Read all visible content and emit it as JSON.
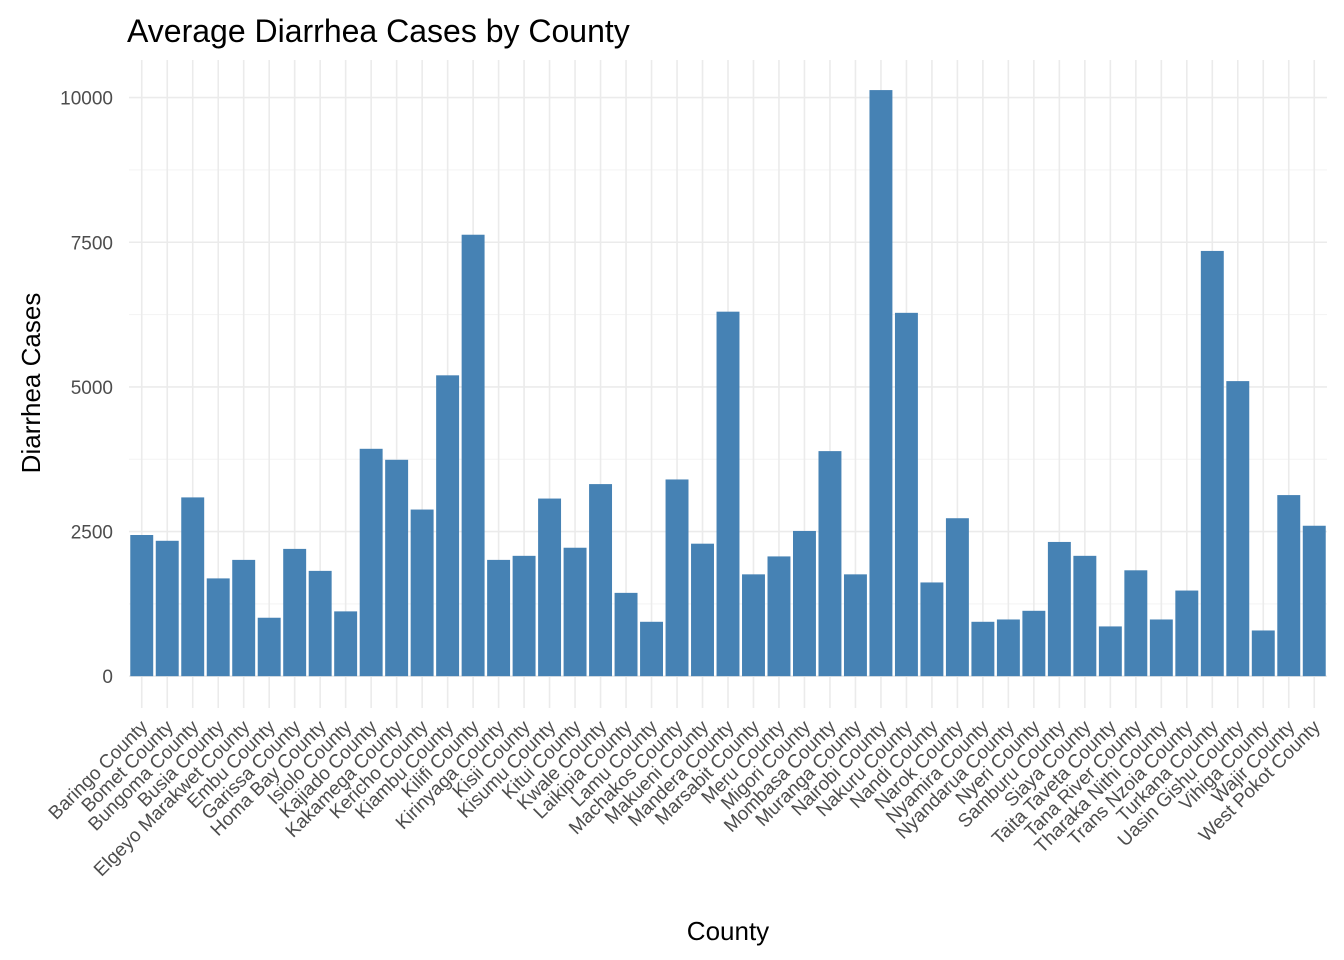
{
  "chart_data": {
    "type": "bar",
    "title": "Average Diarrhea Cases by County",
    "xlabel": "County",
    "ylabel": "Diarrhea Cases",
    "ylim": [
      -550,
      10650
    ],
    "yticks": [
      0,
      2500,
      5000,
      7500,
      10000
    ],
    "grid": true,
    "bar_color": "#4682b4",
    "categories": [
      "Baringo County",
      "Bomet County",
      "Bungoma County",
      "Busia County",
      "Elgeyo Marakwet County",
      "Embu County",
      "Garissa County",
      "Homa Bay County",
      "Isiolo County",
      "Kajiado County",
      "Kakamega County",
      "Kericho County",
      "Kiambu County",
      "Kilifi County",
      "Kirinyaga County",
      "Kisii County",
      "Kisumu County",
      "Kitui County",
      "Kwale County",
      "Laikipia County",
      "Lamu County",
      "Machakos County",
      "Makueni County",
      "Mandera County",
      "Marsabit County",
      "Meru County",
      "Migori County",
      "Mombasa County",
      "Muranga County",
      "Nairobi County",
      "Nakuru County",
      "Nandi County",
      "Narok County",
      "Nyamira County",
      "Nyandarua County",
      "Nyeri County",
      "Samburu County",
      "Siaya County",
      "Taita Taveta County",
      "Tana River County",
      "Tharaka Nithi County",
      "Trans Nzoia County",
      "Turkana County",
      "Uasin Gishu County",
      "Vihiga County",
      "Wajir County",
      "West Pokot County"
    ],
    "values": [
      2440,
      2340,
      3090,
      1690,
      2010,
      1010,
      2200,
      1820,
      1120,
      3930,
      3740,
      2880,
      5200,
      7630,
      2010,
      2080,
      3070,
      2220,
      3320,
      1440,
      940,
      3400,
      2290,
      6300,
      1760,
      2070,
      2510,
      3890,
      1760,
      10130,
      6280,
      1620,
      2730,
      940,
      980,
      1130,
      2320,
      2080,
      860,
      1830,
      980,
      1480,
      7350,
      5100,
      790,
      3130,
      2600
    ]
  }
}
